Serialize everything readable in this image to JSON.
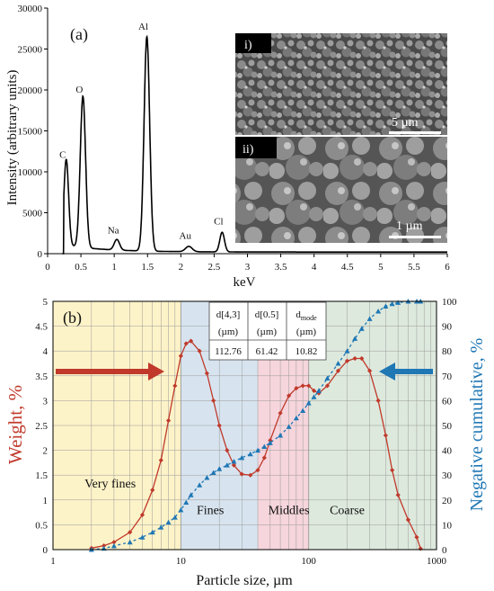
{
  "chart_data": [
    {
      "type": "line",
      "panel_label": "(a)",
      "xlabel": "keV",
      "ylabel": "Intensity (arbitrary units)",
      "xlim": [
        0,
        6
      ],
      "ylim": [
        0,
        30000
      ],
      "x_ticks": [
        "0",
        "0.5",
        "1",
        "1.5",
        "2",
        "2.5",
        "3",
        "3.5",
        "4",
        "4.5",
        "5",
        "5.5",
        "6"
      ],
      "y_ticks": [
        "0",
        "5000",
        "10000",
        "15000",
        "20000",
        "25000",
        "30000"
      ],
      "peaks": [
        {
          "element": "C",
          "x": 0.28,
          "y": 10800
        },
        {
          "element": "O",
          "x": 0.53,
          "y": 18800
        },
        {
          "element": "Na",
          "x": 1.04,
          "y": 1600
        },
        {
          "element": "Al",
          "x": 1.49,
          "y": 26500
        },
        {
          "element": "Au",
          "x": 2.12,
          "y": 950
        },
        {
          "element": "Cl",
          "x": 2.62,
          "y": 2700
        }
      ],
      "color": "#000000"
    },
    {
      "type": "line",
      "panel_label": "(b)",
      "xlabel": "Particle size, µm",
      "ylabel": "Weight, %",
      "y2label": "Negative cumulative, %",
      "x_scale": "log",
      "xlim": [
        1,
        1000
      ],
      "ylim": [
        0,
        5
      ],
      "y2lim": [
        0,
        100
      ],
      "x_ticks": [
        "1",
        "10",
        "100",
        "1000"
      ],
      "y_ticks": [
        "0",
        "0.5",
        "1",
        "1.5",
        "2",
        "2.5",
        "3",
        "3.5",
        "4",
        "4.5",
        "5"
      ],
      "y2_ticks": [
        "0",
        "10",
        "20",
        "30",
        "40",
        "50",
        "60",
        "70",
        "80",
        "90",
        "100"
      ],
      "grid": true,
      "series": [
        {
          "color": "#c0392b",
          "axis": "left",
          "marker": "diamond",
          "x": [
            2.0,
            2.5,
            3.0,
            4.0,
            5.0,
            6.0,
            7.0,
            8.0,
            9.0,
            10,
            11,
            12,
            14,
            16,
            18,
            20,
            23,
            26,
            30,
            35,
            40,
            45,
            50,
            60,
            70,
            80,
            90,
            100,
            110,
            120,
            140,
            170,
            200,
            230,
            260,
            300,
            350,
            400,
            450,
            500,
            600,
            700,
            750
          ],
          "y": [
            0.03,
            0.08,
            0.15,
            0.35,
            0.7,
            1.2,
            1.8,
            2.6,
            3.3,
            3.9,
            4.15,
            4.2,
            4.0,
            3.55,
            3.0,
            2.5,
            2.0,
            1.7,
            1.52,
            1.5,
            1.6,
            1.85,
            2.2,
            2.75,
            3.1,
            3.25,
            3.3,
            3.3,
            3.2,
            3.15,
            3.3,
            3.6,
            3.8,
            3.85,
            3.85,
            3.6,
            3.0,
            2.3,
            1.6,
            1.1,
            0.6,
            0.25,
            0.02
          ]
        },
        {
          "color": "#1f77b4",
          "axis": "right",
          "marker": "triangle",
          "x": [
            2.0,
            2.5,
            3.0,
            4.0,
            5.0,
            6.0,
            7.0,
            8.0,
            9.0,
            10,
            11,
            12,
            14,
            16,
            18,
            20,
            23,
            26,
            30,
            35,
            40,
            45,
            50,
            60,
            70,
            80,
            90,
            100,
            110,
            120,
            140,
            170,
            200,
            230,
            260,
            300,
            350,
            400,
            450,
            500,
            600,
            700,
            750
          ],
          "y": [
            0.0,
            0.5,
            1.5,
            3.0,
            5.0,
            7.0,
            9.0,
            11.0,
            13.0,
            16.0,
            19.0,
            22.0,
            26.0,
            29.0,
            31.0,
            32.5,
            34.0,
            35.5,
            37.0,
            38.5,
            40.0,
            41.5,
            43.0,
            46.0,
            49.5,
            53.0,
            56.0,
            59.0,
            61.5,
            64.0,
            69.0,
            75.0,
            80.0,
            85.0,
            89.0,
            93.0,
            96.0,
            98.0,
            99.0,
            99.5,
            100.0,
            100.0,
            100.0
          ]
        }
      ],
      "regions": [
        {
          "label": "Very fines",
          "from": 1,
          "to": 10,
          "color": "#fdf3c8"
        },
        {
          "label": "Fines",
          "from": 10,
          "to": 40,
          "color": "#d7e4ef"
        },
        {
          "label": "Middles",
          "from": 40,
          "to": 100,
          "color": "#f6d5dc"
        },
        {
          "label": "Coarse",
          "from": 100,
          "to": 1000,
          "color": "#dde9dd"
        }
      ],
      "table": {
        "headers": [
          "d[4,3]",
          "d[0.5]",
          "d"
        ],
        "header_subscript": "mode",
        "units": [
          "(µm)",
          "(µm)",
          "(µm)"
        ],
        "values": [
          "112.76",
          "61.42",
          "10.82"
        ]
      }
    }
  ],
  "sem_images": [
    {
      "label": "i)",
      "scale_bar": "5 µm"
    },
    {
      "label": "ii)",
      "scale_bar": "1 µm"
    }
  ]
}
